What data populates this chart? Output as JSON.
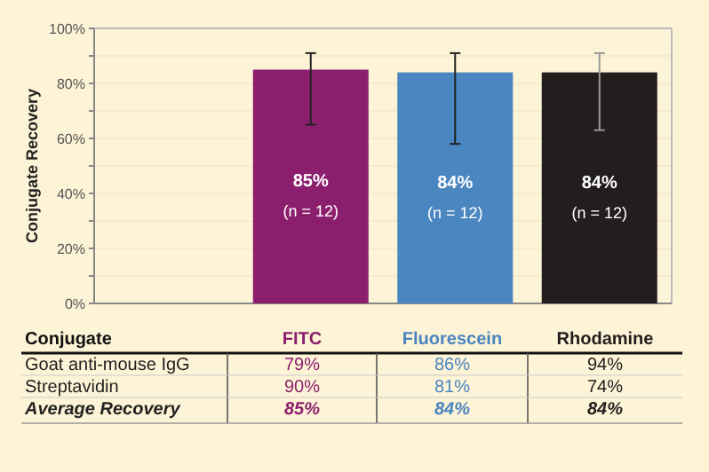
{
  "chart_data": [
    {
      "type": "bar",
      "ylabel": "Conjugate Recovery",
      "categories": [
        null,
        null,
        null,
        null
      ],
      "values": [
        null,
        85,
        84,
        84
      ],
      "colors": [
        null,
        "#8b1f6e",
        "#4a86c0",
        "#231d1d"
      ],
      "errors": [
        null,
        [
          65,
          91
        ],
        [
          58,
          91
        ],
        [
          63,
          91
        ]
      ],
      "value_labels": [
        null,
        "85%",
        "84%",
        "84%"
      ],
      "annotations": [
        "(n = 12)",
        "(n = 12)",
        "(n = 12)"
      ],
      "ylim": [
        0,
        100
      ],
      "yticks": [
        {
          "value": 0,
          "label": "0%"
        },
        {
          "value": 10,
          "label": null
        },
        {
          "value": 20,
          "label": "20%"
        },
        {
          "value": 30,
          "label": null
        },
        {
          "value": 40,
          "label": "40%"
        },
        {
          "value": 50,
          "label": null
        },
        {
          "value": 60,
          "label": "60%"
        },
        {
          "value": 70,
          "label": null
        },
        {
          "value": 80,
          "label": "80%"
        },
        {
          "value": 90,
          "label": null
        },
        {
          "value": 100,
          "label": "100%"
        }
      ],
      "grid": "y",
      "tick_labels": "y"
    },
    {
      "type": "other",
      "ylabel": "Conjugate",
      "categories": [
        "FITC",
        "Fluorescein",
        "Rhodamine"
      ],
      "colors": [
        "#8b1f6e",
        "#4a86c0",
        "#231d1d"
      ],
      "y_categories": [
        "Goat anti-mouse IgG",
        "Streptavidin",
        "Average Recovery"
      ],
      "cell_labels": [
        [
          "79%",
          "86%",
          "94%"
        ],
        [
          "90%",
          "81%",
          "74%"
        ],
        [
          "85%",
          "84%",
          "84%"
        ]
      ]
    }
  ]
}
